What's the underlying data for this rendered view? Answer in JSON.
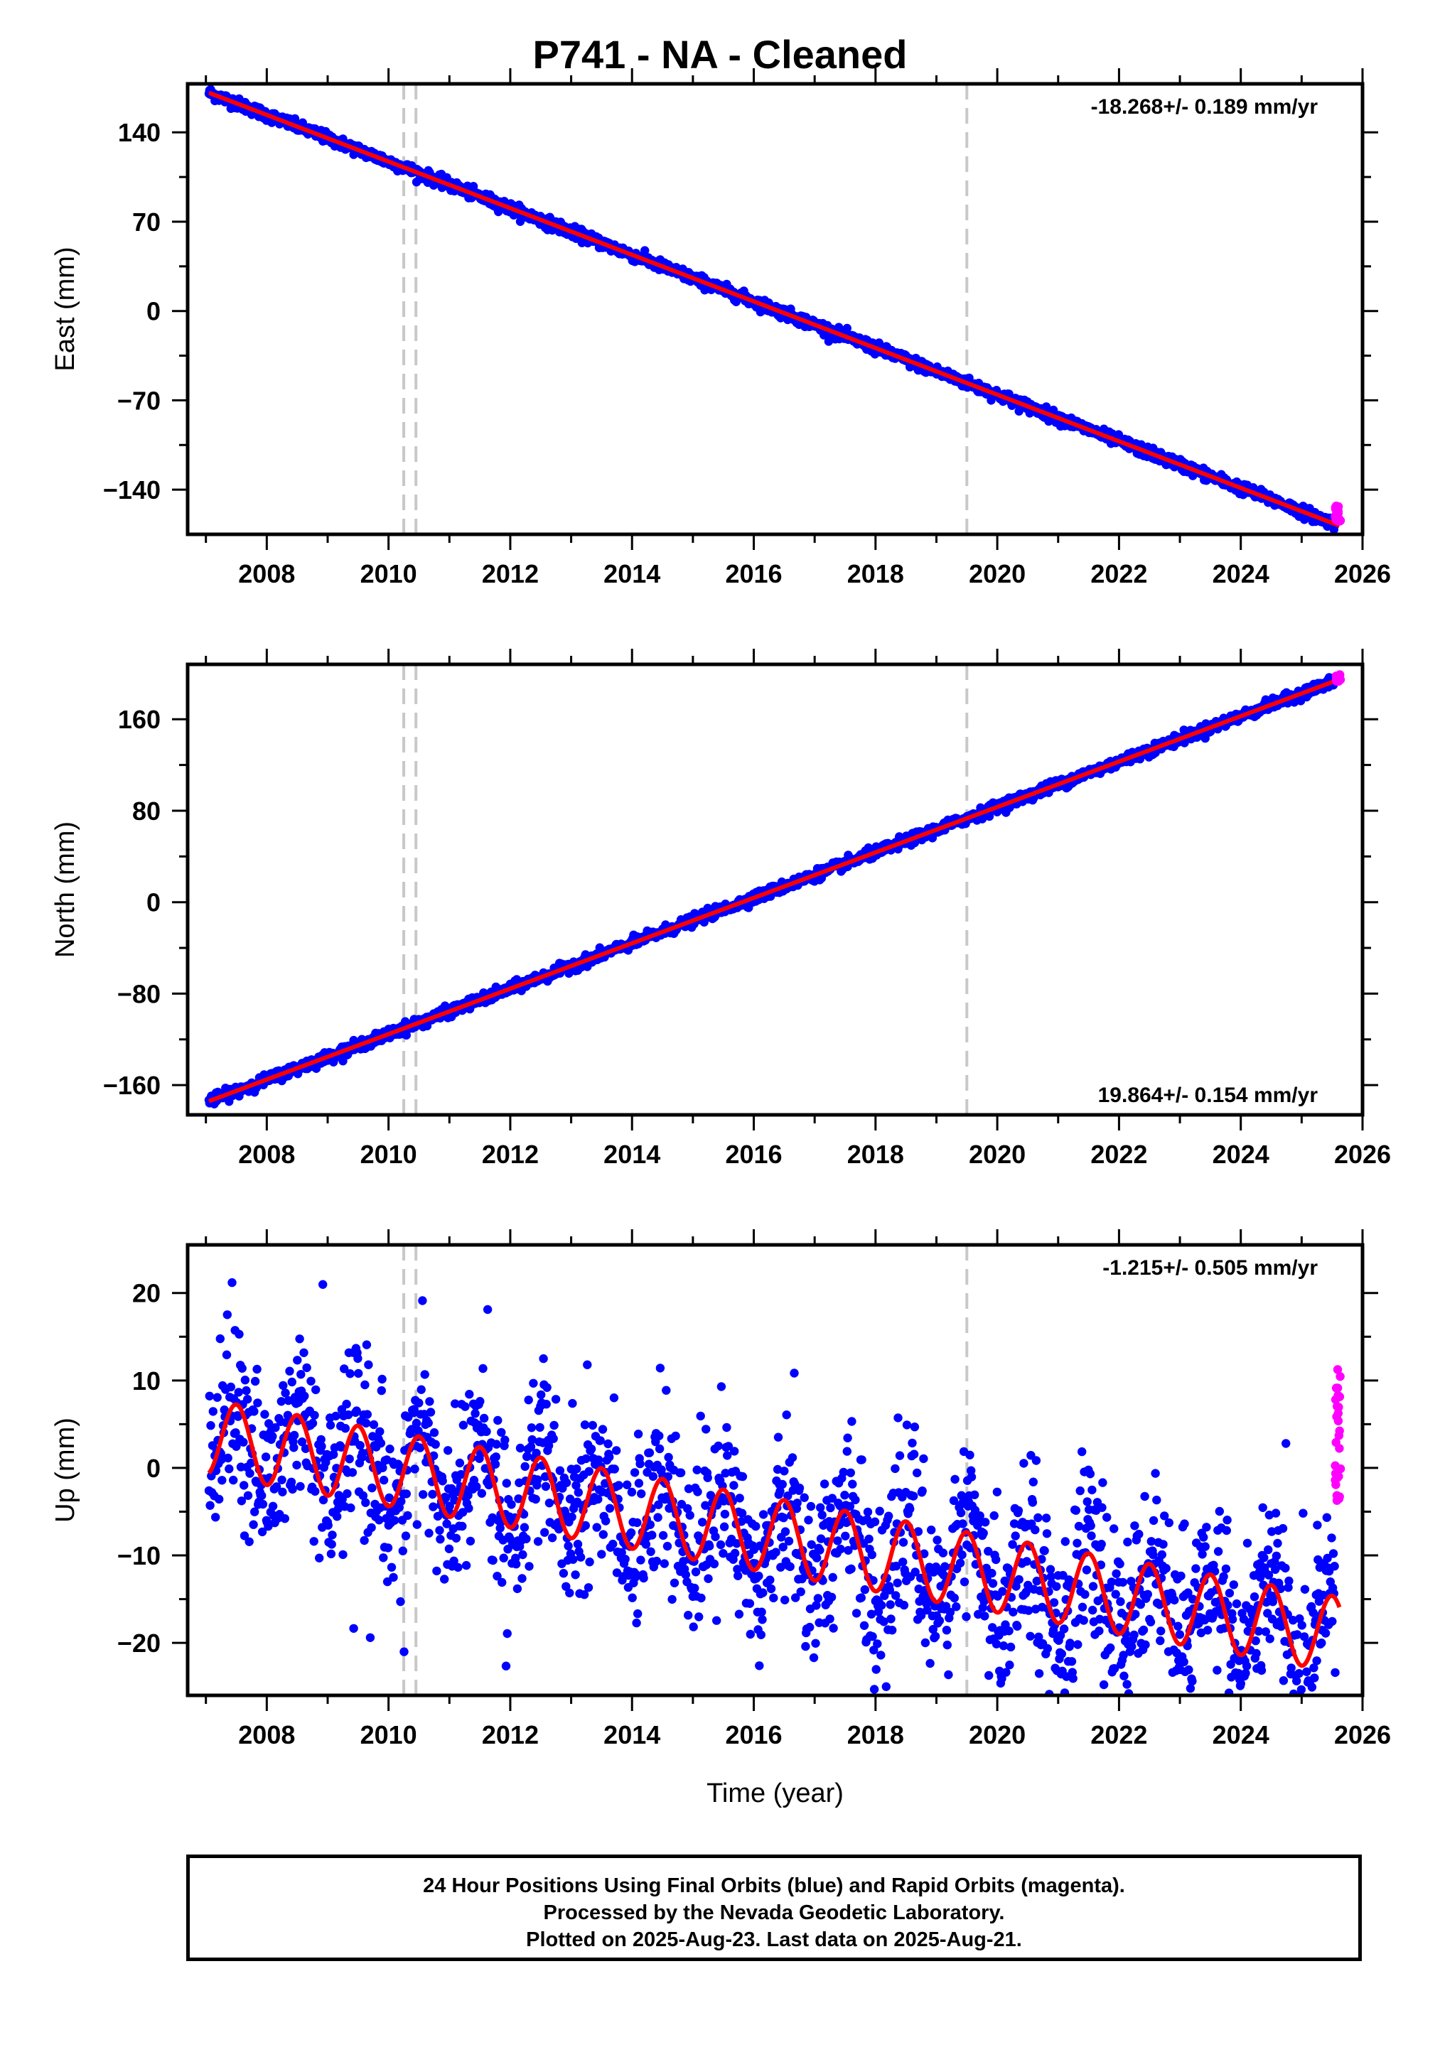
{
  "title": "P741  - NA - Cleaned",
  "footer": {
    "line1": "24 Hour Positions Using Final Orbits (blue) and Rapid Orbits (magenta).",
    "line2": "Processed by the Nevada Geodetic Laboratory.",
    "line3": "Plotted on 2025-Aug-23. Last data on 2025-Aug-21."
  },
  "colors": {
    "final_orbits": "#0000ff",
    "rapid_orbits": "#ff00ff",
    "model_fit": "#ff0000",
    "event_lines": "#c8c8c8"
  },
  "chart_data": [
    {
      "type": "scatter",
      "ylabel": "East (mm)",
      "xlabel": "",
      "rate_label": "-18.268+/- 0.189 mm/yr",
      "xlim": [
        2006.7,
        2026.0
      ],
      "ylim": [
        -175,
        178
      ],
      "x_ticks": [
        2008,
        2010,
        2012,
        2014,
        2016,
        2018,
        2020,
        2022,
        2024,
        2026
      ],
      "y_ticks": [
        140,
        70,
        0,
        -70,
        -140
      ],
      "y_tick_labels": [
        "140",
        "70",
        "0",
        "−70",
        "−140"
      ],
      "event_lines": [
        2010.25,
        2010.45,
        2019.5
      ],
      "series": [
        {
          "type": "scatter",
          "color": "#0000ff",
          "x_start": 2007.05,
          "x_end": 2025.55,
          "start": 171,
          "rate": -18.268,
          "scatter": 2.2,
          "seasonal": 0
        },
        {
          "type": "line",
          "color": "#ff0000",
          "x_start": 2007.05,
          "x_end": 2025.62,
          "start": 171,
          "rate": -18.268,
          "seasonal": 0
        },
        {
          "type": "scatter",
          "color": "#ff00ff",
          "x_start": 2025.55,
          "x_end": 2025.64,
          "center": -159,
          "spread": 7
        }
      ]
    },
    {
      "type": "scatter",
      "ylabel": "North (mm)",
      "xlabel": "",
      "rate_label": "19.864+/- 0.154 mm/yr",
      "xlim": [
        2006.7,
        2026.0
      ],
      "ylim": [
        -186,
        208
      ],
      "x_ticks": [
        2008,
        2010,
        2012,
        2014,
        2016,
        2018,
        2020,
        2022,
        2024,
        2026
      ],
      "y_ticks": [
        160,
        80,
        0,
        -80,
        -160
      ],
      "y_tick_labels": [
        "160",
        "80",
        "0",
        "−80",
        "−160"
      ],
      "event_lines": [
        2010.25,
        2010.45,
        2019.5
      ],
      "series": [
        {
          "type": "scatter",
          "color": "#0000ff",
          "x_start": 2007.05,
          "x_end": 2025.55,
          "start": -174,
          "rate": 19.864,
          "scatter": 2.3,
          "seasonal": 0
        },
        {
          "type": "line",
          "color": "#ff0000",
          "x_start": 2007.05,
          "x_end": 2025.62,
          "start": -174,
          "rate": 19.864,
          "seasonal": 0
        },
        {
          "type": "scatter",
          "color": "#ff00ff",
          "x_start": 2025.55,
          "x_end": 2025.64,
          "center": 196,
          "spread": 3
        }
      ]
    },
    {
      "type": "scatter",
      "ylabel": "Up (mm)",
      "xlabel": "Time (year)",
      "rate_label": "-1.215+/- 0.505 mm/yr",
      "xlim": [
        2006.7,
        2026.0
      ],
      "ylim": [
        -26,
        25.5
      ],
      "x_ticks": [
        2008,
        2010,
        2012,
        2014,
        2016,
        2018,
        2020,
        2022,
        2024,
        2026
      ],
      "y_ticks": [
        20,
        10,
        0,
        -10,
        -20
      ],
      "y_tick_labels": [
        "20",
        "10",
        "0",
        "−10",
        "−20"
      ],
      "event_lines": [
        2010.25,
        2010.45,
        2019.5
      ],
      "series": [
        {
          "type": "scatter",
          "color": "#0000ff",
          "x_start": 2007.05,
          "x_end": 2025.55,
          "start": 3.5,
          "rate": -1.215,
          "scatter": 4.8,
          "seasonal": 4.3
        },
        {
          "type": "line",
          "color": "#ff0000",
          "x_start": 2007.05,
          "x_end": 2025.62,
          "start": 3.5,
          "rate": -1.215,
          "seasonal": 4.3
        },
        {
          "type": "scatter",
          "color": "#ff00ff",
          "x_start": 2025.55,
          "x_end": 2025.64,
          "center": 3,
          "spread": 8.5
        }
      ]
    }
  ]
}
